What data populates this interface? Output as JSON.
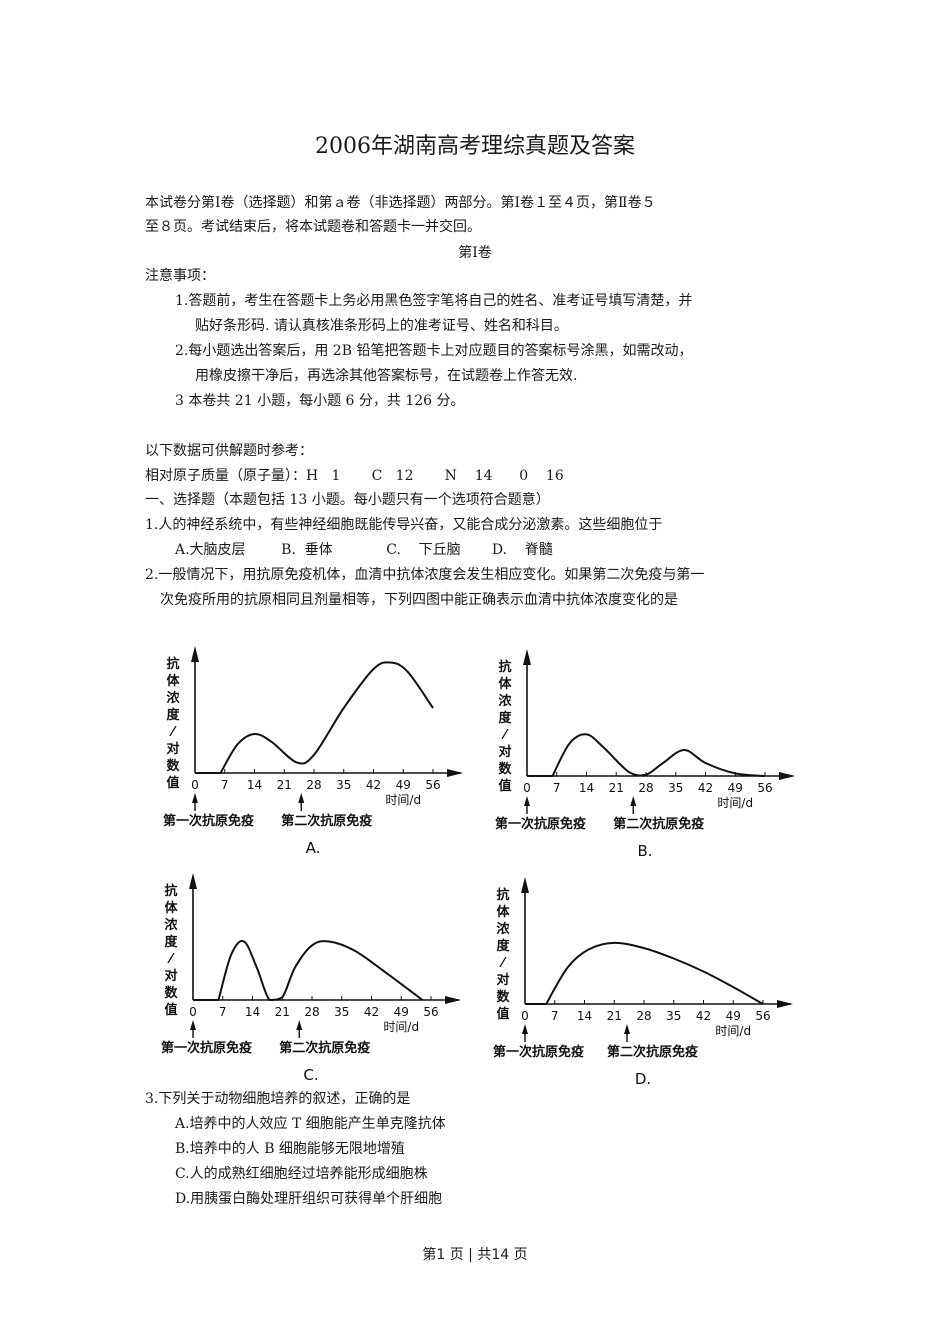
{
  "title": "2006年湖南高考理综真题及答案",
  "intro": [
    "本试卷分第Ⅰ卷（选择题）和第ａ卷（非选择题）两部分。第Ⅰ卷１至４页，第Ⅱ卷５",
    "至８页。考试结束后，将本试题卷和答题卡一并交回。"
  ],
  "volume_heading": "第Ⅰ卷",
  "notice_heading": "注意事项：",
  "notices": [
    "1.答题前，考生在答题卡上务必用黑色签字笔将自己的姓名、准考证号填写清楚，并",
    "贴好条形码. 请认真核准条形码上的准考证号、姓名和科目。",
    "2.每小题选出答案后，用 2B 铅笔把答题卡上对应题目的答案标号涂黑，如需改动，",
    "用橡皮擦干净后，再选涂其他答案标号，在试题卷上作答无效.",
    "3 本卷共 21 小题，每小题 6 分，共 126 分。"
  ],
  "reference_heading": "以下数据可供解题时参考：",
  "atomic_mass": "相对原子质量（原子量）：H   1       C   12       N    14      0    16",
  "section_heading": "一、选择题（本题包括 13 小题。每小题只有一个选项符合题意）",
  "q1": {
    "stem": "1.人的神经系统中，有些神经细胞既能传导兴奋，又能合成分泌激素。这些细胞位于",
    "options": "A.大脑皮层        B.  垂体            C.    下丘脑       D.    脊髓"
  },
  "q2": {
    "stem": [
      "2.一般情况下，用抗原免疫机体，血清中抗体浓度会发生相应变化。如果第二次免疫与第一",
      "次免疫所用的抗原相同且剂量相等，下列四图中能正确表示血清中抗体浓度变化的是"
    ]
  },
  "chart_data": [
    {
      "type": "line",
      "label": "A.",
      "ylabel": "抗体浓度/对数值",
      "xlabel": "时间/d",
      "xticks": [
        "0",
        "7",
        "14",
        "21",
        "28",
        "35",
        "42",
        "49",
        "56"
      ],
      "xlim": [
        0,
        56
      ],
      "annotations": [
        "第一次抗原免疫",
        "第二次抗原免疫"
      ],
      "annotation_days": [
        0,
        25
      ],
      "x": [
        6,
        10,
        14,
        18,
        24,
        28,
        35,
        42,
        46,
        50,
        56
      ],
      "y": [
        0,
        22,
        30,
        24,
        8,
        14,
        50,
        80,
        85,
        78,
        50
      ]
    },
    {
      "type": "line",
      "label": "B.",
      "ylabel": "抗体浓度/对数值",
      "xlabel": "时间/d",
      "xticks": [
        "0",
        "7",
        "14",
        "21",
        "28",
        "35",
        "42",
        "49",
        "56"
      ],
      "xlim": [
        0,
        56
      ],
      "annotations": [
        "第一次抗原免疫",
        "第二次抗原免疫"
      ],
      "annotation_days": [
        0,
        25
      ],
      "x": [
        6,
        10,
        14,
        18,
        24,
        28,
        32,
        37,
        42,
        49,
        56
      ],
      "y": [
        0,
        25,
        32,
        22,
        3,
        1,
        10,
        20,
        10,
        2,
        0
      ]
    },
    {
      "type": "line",
      "label": "C.",
      "ylabel": "抗体浓度/对数值",
      "xlabel": "时间/d",
      "xticks": [
        "0",
        "7",
        "14",
        "21",
        "28",
        "35",
        "42",
        "49",
        "56"
      ],
      "xlim": [
        0,
        56
      ],
      "annotations": [
        "第一次抗原免疫",
        "第二次抗原免疫"
      ],
      "annotation_days": [
        0,
        25
      ],
      "x": [
        6,
        9,
        12,
        15,
        18,
        21,
        24,
        28,
        32,
        38,
        45,
        54
      ],
      "y": [
        0,
        35,
        45,
        25,
        0,
        2,
        25,
        42,
        45,
        38,
        22,
        0
      ]
    },
    {
      "type": "line",
      "label": "D.",
      "ylabel": "抗体浓度/对数值",
      "xlabel": "时间/d",
      "xticks": [
        "0",
        "7",
        "14",
        "21",
        "28",
        "35",
        "42",
        "49",
        "56"
      ],
      "xlim": [
        0,
        56
      ],
      "annotations": [
        "第一次抗原免疫",
        "第二次抗原免疫"
      ],
      "annotation_days": [
        0,
        24
      ],
      "x": [
        5,
        10,
        15,
        21,
        28,
        35,
        42,
        49,
        56
      ],
      "y": [
        0,
        28,
        42,
        47,
        43,
        35,
        25,
        13,
        0
      ]
    }
  ],
  "q3": {
    "stem": "3.下列关于动物细胞培养的叙述，正确的是",
    "options": [
      "A.培养中的人效应 T 细胞能产生单克隆抗体",
      "B.培养中的人 B 细胞能够无限地增殖",
      "C.人的成熟红细胞经过培养能形成细胞株",
      "D.用胰蛋白酶处理肝组织可获得单个肝细胞"
    ]
  },
  "footer": "第1 页  |  共14 页"
}
